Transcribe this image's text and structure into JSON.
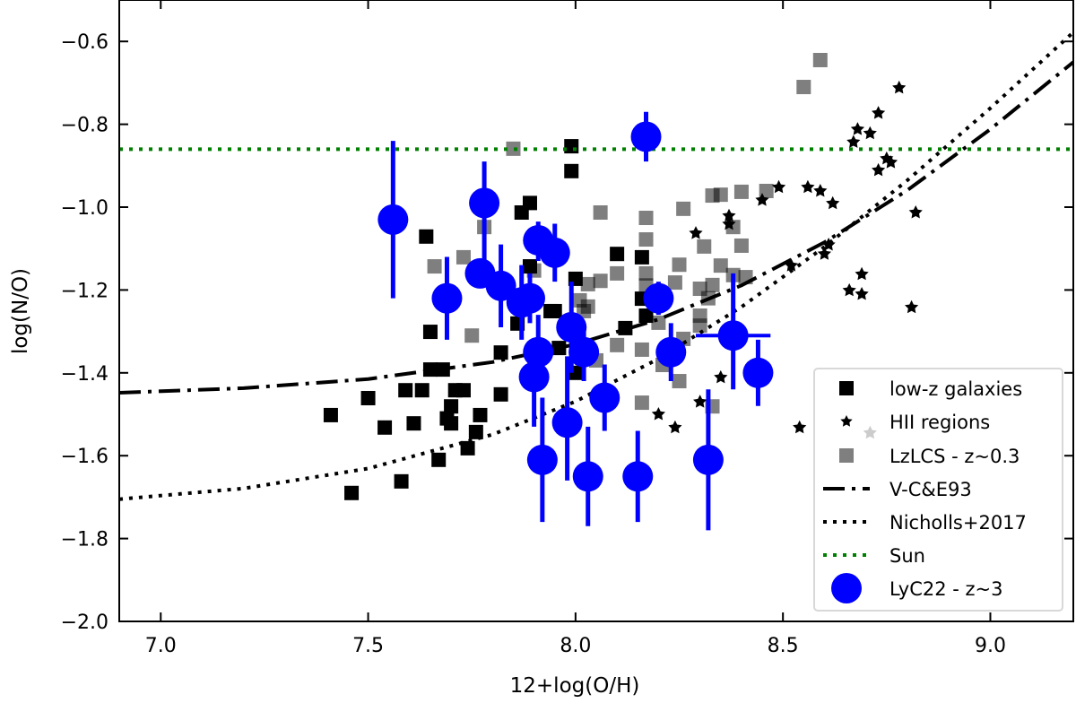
{
  "chart_data": {
    "type": "scatter",
    "xlabel": "12+log(O/H)",
    "ylabel": "log(N/O)",
    "xlim": [
      6.9,
      9.2
    ],
    "ylim": [
      -2.0,
      -0.5
    ],
    "xticks": [
      "7.0",
      "7.5",
      "8.0",
      "8.5",
      "9.0"
    ],
    "xtick_values": [
      7.0,
      7.5,
      8.0,
      8.5,
      9.0
    ],
    "yticks": [
      "−2.0",
      "−1.8",
      "−1.6",
      "−1.4",
      "−1.2",
      "−1.0",
      "−0.8",
      "−0.6"
    ],
    "ytick_values": [
      -2.0,
      -1.8,
      -1.6,
      -1.4,
      -1.2,
      -1.0,
      -0.8,
      -0.6
    ],
    "grid": false,
    "legend_placement": "lower-right",
    "colors": {
      "low_z": "#000000",
      "hii": "#000000",
      "lzlcs": "#808080",
      "lyc22": "#0000ff",
      "sun": "#008000"
    },
    "series": [
      {
        "name": "low-z galaxies",
        "marker": "square",
        "points": [
          [
            7.99,
            -0.853
          ],
          [
            7.99,
            -0.913
          ],
          [
            7.89,
            -0.99
          ],
          [
            7.87,
            -1.013
          ],
          [
            7.64,
            -1.071
          ],
          [
            7.89,
            -1.143
          ],
          [
            8.0,
            -1.173
          ],
          [
            8.1,
            -1.113
          ],
          [
            8.16,
            -1.121
          ],
          [
            8.16,
            -1.221
          ],
          [
            8.17,
            -1.262
          ],
          [
            7.86,
            -1.281
          ],
          [
            7.94,
            -1.251
          ],
          [
            7.95,
            -1.251
          ],
          [
            8.12,
            -1.292
          ],
          [
            7.65,
            -1.301
          ],
          [
            7.82,
            -1.351
          ],
          [
            7.96,
            -1.34
          ],
          [
            8.0,
            -1.4
          ],
          [
            7.65,
            -1.392
          ],
          [
            7.68,
            -1.392
          ],
          [
            7.59,
            -1.442
          ],
          [
            7.63,
            -1.442
          ],
          [
            7.71,
            -1.442
          ],
          [
            7.73,
            -1.442
          ],
          [
            7.82,
            -1.452
          ],
          [
            7.5,
            -1.461
          ],
          [
            7.41,
            -1.502
          ],
          [
            7.54,
            -1.532
          ],
          [
            7.61,
            -1.522
          ],
          [
            7.7,
            -1.481
          ],
          [
            7.7,
            -1.522
          ],
          [
            7.69,
            -1.51
          ],
          [
            7.77,
            -1.502
          ],
          [
            7.76,
            -1.543
          ],
          [
            7.74,
            -1.582
          ],
          [
            7.67,
            -1.61
          ],
          [
            7.58,
            -1.662
          ],
          [
            7.46,
            -1.69
          ]
        ]
      },
      {
        "name": "HII regions",
        "marker": "star",
        "points": [
          [
            8.78,
            -0.712
          ],
          [
            8.73,
            -0.773
          ],
          [
            8.68,
            -0.812
          ],
          [
            8.71,
            -0.822
          ],
          [
            8.67,
            -0.843
          ],
          [
            8.75,
            -0.883
          ],
          [
            8.76,
            -0.892
          ],
          [
            8.73,
            -0.911
          ],
          [
            8.49,
            -0.952
          ],
          [
            8.56,
            -0.952
          ],
          [
            8.59,
            -0.961
          ],
          [
            8.45,
            -0.983
          ],
          [
            8.62,
            -0.991
          ],
          [
            8.37,
            -1.021
          ],
          [
            8.37,
            -1.041
          ],
          [
            8.29,
            -1.063
          ],
          [
            8.82,
            -1.013
          ],
          [
            8.61,
            -1.091
          ],
          [
            8.6,
            -1.113
          ],
          [
            8.52,
            -1.141
          ],
          [
            8.69,
            -1.162
          ],
          [
            8.66,
            -1.201
          ],
          [
            8.69,
            -1.21
          ],
          [
            8.81,
            -1.242
          ],
          [
            8.35,
            -1.411
          ],
          [
            8.3,
            -1.47
          ],
          [
            8.54,
            -1.532
          ],
          [
            8.24,
            -1.532
          ],
          [
            8.2,
            -1.5
          ],
          [
            8.71,
            -1.545
          ]
        ]
      },
      {
        "name": "LzLCS - z~0.3",
        "marker": "square",
        "points": [
          [
            7.85,
            -0.859
          ],
          [
            8.06,
            -1.013
          ],
          [
            8.17,
            -1.026
          ],
          [
            8.26,
            -1.004
          ],
          [
            8.17,
            -1.078
          ],
          [
            8.31,
            -1.095
          ],
          [
            8.25,
            -1.139
          ],
          [
            7.78,
            -1.048
          ],
          [
            7.73,
            -1.121
          ],
          [
            7.66,
            -1.143
          ],
          [
            7.9,
            -1.153
          ],
          [
            8.1,
            -1.16
          ],
          [
            8.17,
            -1.16
          ],
          [
            8.24,
            -1.182
          ],
          [
            8.06,
            -1.178
          ],
          [
            8.03,
            -1.186
          ],
          [
            8.3,
            -1.197
          ],
          [
            8.17,
            -1.189
          ],
          [
            8.01,
            -1.225
          ],
          [
            8.03,
            -1.24
          ],
          [
            8.02,
            -1.251
          ],
          [
            8.3,
            -1.262
          ],
          [
            8.2,
            -1.279
          ],
          [
            8.3,
            -1.286
          ],
          [
            8.26,
            -1.318
          ],
          [
            8.1,
            -1.333
          ],
          [
            8.16,
            -1.344
          ],
          [
            8.05,
            -1.37
          ],
          [
            8.21,
            -1.381
          ],
          [
            8.25,
            -1.42
          ],
          [
            7.75,
            -1.31
          ],
          [
            8.16,
            -1.472
          ],
          [
            8.33,
            -1.481
          ],
          [
            8.33,
            -0.972
          ],
          [
            8.59,
            -0.645
          ],
          [
            8.55,
            -0.71
          ],
          [
            8.35,
            -0.97
          ],
          [
            8.4,
            -0.963
          ],
          [
            8.46,
            -0.961
          ],
          [
            8.38,
            -1.048
          ],
          [
            8.4,
            -1.093
          ],
          [
            8.35,
            -1.141
          ],
          [
            8.38,
            -1.164
          ],
          [
            8.41,
            -1.169
          ],
          [
            8.33,
            -1.188
          ],
          [
            8.32,
            -1.22
          ]
        ]
      },
      {
        "name": "V-C&E93",
        "marker": "line",
        "style": "dashdot",
        "points": [
          [
            6.9,
            -1.448
          ],
          [
            7.2,
            -1.437
          ],
          [
            7.5,
            -1.415
          ],
          [
            7.8,
            -1.374
          ],
          [
            8.0,
            -1.331
          ],
          [
            8.2,
            -1.271
          ],
          [
            8.4,
            -1.189
          ],
          [
            8.6,
            -1.085
          ],
          [
            8.8,
            -0.959
          ],
          [
            9.0,
            -0.812
          ],
          [
            9.2,
            -0.65
          ]
        ]
      },
      {
        "name": "Nicholls+2017",
        "marker": "line",
        "style": "dotted",
        "points": [
          [
            6.9,
            -1.705
          ],
          [
            7.2,
            -1.679
          ],
          [
            7.5,
            -1.631
          ],
          [
            7.8,
            -1.549
          ],
          [
            8.0,
            -1.469
          ],
          [
            8.2,
            -1.366
          ],
          [
            8.4,
            -1.241
          ],
          [
            8.6,
            -1.096
          ],
          [
            8.8,
            -0.935
          ],
          [
            9.0,
            -0.761
          ],
          [
            9.2,
            -0.578
          ]
        ]
      },
      {
        "name": "Sun",
        "marker": "hline",
        "style": "dotted",
        "y": -0.86
      },
      {
        "name": "LyC22 - z~3",
        "marker": "circle",
        "points": [
          {
            "x": 7.56,
            "y": -1.03,
            "ylo": -1.22,
            "yhi": -0.84
          },
          {
            "x": 7.78,
            "y": -0.99,
            "ylo": -1.13,
            "yhi": -0.89
          },
          {
            "x": 7.69,
            "y": -1.22,
            "ylo": -1.32,
            "yhi": -1.12
          },
          {
            "x": 7.77,
            "y": -1.16
          },
          {
            "x": 7.82,
            "y": -1.19,
            "ylo": -1.29,
            "yhi": -1.09
          },
          {
            "x": 7.87,
            "y": -1.23,
            "ylo": -1.32,
            "yhi": -1.14
          },
          {
            "x": 7.89,
            "y": -1.22,
            "ylo": -1.28,
            "yhi": -1.16
          },
          {
            "x": 7.91,
            "y": -1.08,
            "ylo": -1.13,
            "yhi": -1.035
          },
          {
            "x": 7.95,
            "y": -1.11,
            "ylo": -1.18,
            "yhi": -1.04
          },
          {
            "x": 7.99,
            "y": -1.29,
            "ylo": -1.4,
            "yhi": -1.18
          },
          {
            "x": 7.91,
            "y": -1.35,
            "ylo": -1.44,
            "yhi": -1.26
          },
          {
            "x": 8.02,
            "y": -1.35,
            "ylo": -1.42,
            "yhi": -1.3
          },
          {
            "x": 7.9,
            "y": -1.41,
            "ylo": -1.53,
            "yhi": -1.32
          },
          {
            "x": 8.2,
            "y": -1.22,
            "ylo": -1.26,
            "yhi": -1.18
          },
          {
            "x": 8.23,
            "y": -1.35,
            "ylo": -1.42,
            "yhi": -1.28
          },
          {
            "x": 8.07,
            "y": -1.46,
            "ylo": -1.54,
            "yhi": -1.38
          },
          {
            "x": 7.98,
            "y": -1.52,
            "ylo": -1.66,
            "yhi": -1.36
          },
          {
            "x": 7.92,
            "y": -1.61,
            "ylo": -1.76,
            "yhi": -1.46
          },
          {
            "x": 8.03,
            "y": -1.65,
            "ylo": -1.77,
            "yhi": -1.53
          },
          {
            "x": 8.15,
            "y": -1.65,
            "ylo": -1.76,
            "yhi": -1.54
          },
          {
            "x": 8.32,
            "y": -1.61,
            "ylo": -1.78,
            "yhi": -1.44
          },
          {
            "x": 8.17,
            "y": -0.83,
            "ylo": -0.89,
            "yhi": -0.77
          },
          {
            "x": 8.38,
            "y": -1.31,
            "ylo": -1.44,
            "yhi": -1.16,
            "xlo": 8.29,
            "xhi": 8.47
          },
          {
            "x": 8.44,
            "y": -1.4,
            "ylo": -1.48,
            "yhi": -1.32
          }
        ]
      }
    ]
  }
}
